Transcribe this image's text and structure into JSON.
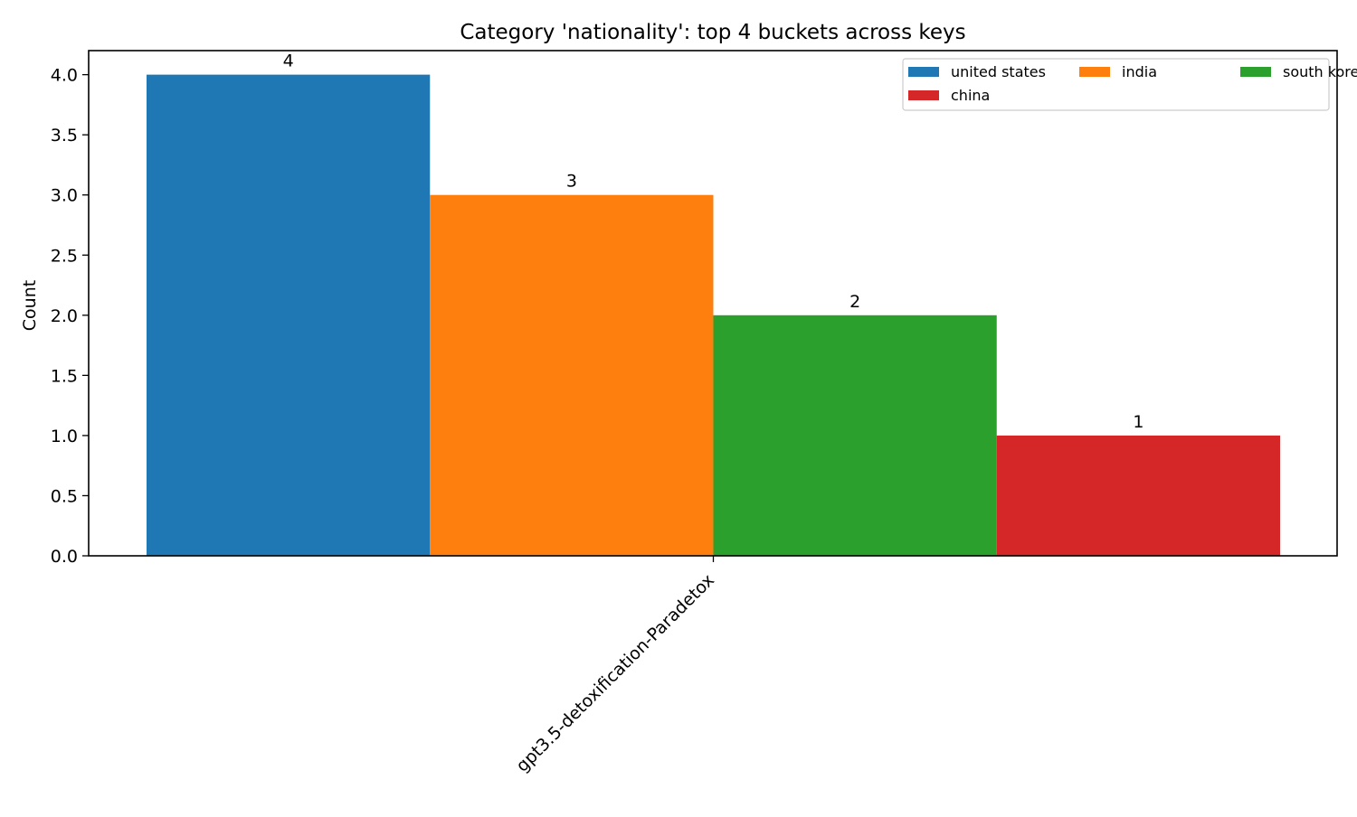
{
  "chart_data": {
    "type": "bar",
    "title": "Category 'nationality': top 4 buckets across keys",
    "xlabel": "",
    "ylabel": "Count",
    "categories": [
      "gpt3.5-detoxification-Paradetox"
    ],
    "series": [
      {
        "name": "united states",
        "values": [
          4
        ],
        "color": "#1f77b4"
      },
      {
        "name": "india",
        "values": [
          3
        ],
        "color": "#ff7f0e"
      },
      {
        "name": "south korea",
        "values": [
          2
        ],
        "color": "#2ca02c"
      },
      {
        "name": "china",
        "values": [
          1
        ],
        "color": "#d62728"
      }
    ],
    "data_labels": [
      "4",
      "3",
      "2",
      "1"
    ],
    "ylim": [
      0,
      4.2
    ],
    "yticks": [
      "0.0",
      "0.5",
      "1.0",
      "1.5",
      "2.0",
      "2.5",
      "3.0",
      "3.5",
      "4.0"
    ],
    "grid": false,
    "legend_position": "top-right",
    "legend_columns": 3
  }
}
